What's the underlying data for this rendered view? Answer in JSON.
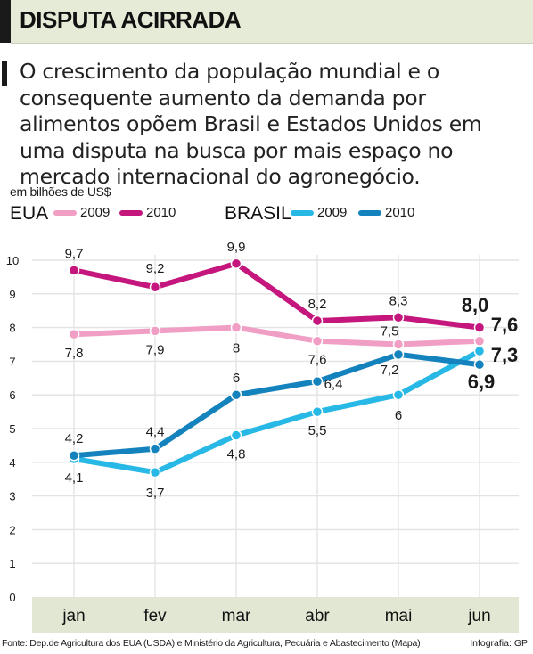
{
  "header": {
    "title": "DISPUTA ACIRRADA"
  },
  "intro": {
    "text": "O crescimento da população mundial e o consequente aumento da demanda por alimentos opõem Brasil e Estados Unidos em uma disputa na busca por mais espaço no mercado internacional do agronegócio."
  },
  "legend": {
    "eua_title": "EUA",
    "brasil_title": "BRASIL",
    "label_2009": "2009",
    "label_2010": "2010"
  },
  "footer": {
    "source": "Fonte: Dep.de Agricultura dos EUA (USDA) e Ministério da Agricultura, Pecuária e Abastecimento (Mapa)",
    "credit": "Infografia: GP"
  },
  "colors": {
    "eua_2009": "#f19ec4",
    "eua_2010": "#c4167c",
    "brasil_2009": "#27b8e6",
    "brasil_2010": "#1483bd",
    "plot_bg": "#e1e7d2",
    "grid": "#e3e3e3"
  },
  "chart_data": {
    "type": "line",
    "ylabel": "em bilhões de US$",
    "categories": [
      "jan",
      "fev",
      "mar",
      "abr",
      "mai",
      "jun"
    ],
    "ylim": [
      0,
      10
    ],
    "yticks": [
      "0",
      "1",
      "2",
      "3",
      "4",
      "5",
      "6",
      "7",
      "8",
      "9",
      "10"
    ],
    "grid": true,
    "series": [
      {
        "name": "EUA 2009",
        "values": [
          7.8,
          7.9,
          8,
          7.6,
          7.5,
          7.6
        ],
        "labels": [
          "7,8",
          "7,9",
          "8",
          "7,6",
          "7,5",
          "7,6"
        ]
      },
      {
        "name": "EUA 2010",
        "values": [
          9.7,
          9.2,
          9.9,
          8.2,
          8.3,
          8.0
        ],
        "labels": [
          "9,7",
          "9,2",
          "9,9",
          "8,2",
          "8,3",
          "8,0"
        ]
      },
      {
        "name": "BRASIL 2009",
        "values": [
          4.1,
          3.7,
          4.8,
          5.5,
          6,
          7.3
        ],
        "labels": [
          "4,1",
          "3,7",
          "4,8",
          "5,5",
          "6",
          "7,3"
        ]
      },
      {
        "name": "BRASIL 2010",
        "values": [
          4.2,
          4.4,
          6,
          6.4,
          7.2,
          6.9
        ],
        "labels": [
          "4,2",
          "4,4",
          "6",
          "6,4",
          "7,2",
          "6,9"
        ]
      }
    ]
  }
}
